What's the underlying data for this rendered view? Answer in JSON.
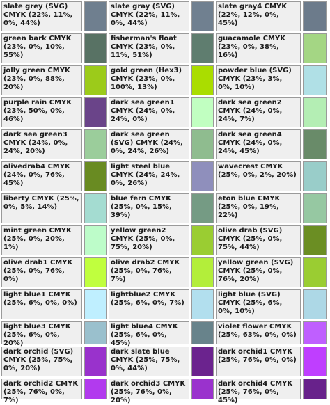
{
  "rows": [
    [
      {
        "label": "slate grey (SVG) CMYK (22%, 11%, 0%, 44%)",
        "color": "#6f7f8f"
      },
      {
        "label": "slate gray (SVG) CMYK (22%, 11%, 0%, 44%)",
        "color": "#708090"
      },
      {
        "label": "slate gray4 CMYK (22%, 12%, 0%, 45%)",
        "color": "#6c7b8b"
      }
    ],
    [
      {
        "label": "green bark CMYK (23%, 0%, 10%, 55%)",
        "color": "#587264"
      },
      {
        "label": "fisherman's float CMYK (23%, 0%, 11%, 51%)",
        "color": "#5f7d6f"
      },
      {
        "label": "guacamole CMYK (23%, 0%, 38%, 16%)",
        "color": "#a4d684"
      }
    ],
    [
      {
        "label": "jolly green CMYK (23%, 0%, 88%, 20%)",
        "color": "#9ccb1a"
      },
      {
        "label": "gold green (Hex3) CMYK (23%, 0%, 100%, 13%)",
        "color": "#aadd00"
      },
      {
        "label": "powder blue (SVG) CMYK (23%, 3%, 0%, 10%)",
        "color": "#b0e0e6"
      }
    ],
    [
      {
        "label": "purple rain CMYK (23%, 50%, 0%, 46%)",
        "color": "#6a4489"
      },
      {
        "label": "dark sea green1 CMYK (24%, 0%, 24%, 0%)",
        "color": "#c1ffc1"
      },
      {
        "label": "dark sea green2 CMYK (24%, 0%, 24%, 7%)",
        "color": "#b4eeb4"
      }
    ],
    [
      {
        "label": "dark sea green3 CMYK (24%, 0%, 24%, 20%)",
        "color": "#9bcd9b"
      },
      {
        "label": "dark sea green (SVG) CMYK (24%, 0%, 24%, 26%)",
        "color": "#8fbc8f"
      },
      {
        "label": "dark sea green4 CMYK (24%, 0%, 24%, 45%)",
        "color": "#698b69"
      }
    ],
    [
      {
        "label": "olivedrab4 CMYK (24%, 0%, 76%, 45%)",
        "color": "#698b22"
      },
      {
        "label": "light steel blue CMYK (24%, 24%, 0%, 26%)",
        "color": "#8f8fbc"
      },
      {
        "label": "wavecrest CMYK (25%, 0%, 2%, 20%)",
        "color": "#99cdc9"
      }
    ],
    [
      {
        "label": "liberty CMYK (25%, 0%, 5%, 14%)",
        "color": "#a4dcd1"
      },
      {
        "label": "blue fern CMYK (25%, 0%, 15%, 39%)",
        "color": "#759b84"
      },
      {
        "label": "eton blue CMYK (25%, 0%, 19%, 22%)",
        "color": "#96c8a2"
      }
    ],
    [
      {
        "label": "mint green CMYK (25%, 0%, 20%, 1%)",
        "color": "#bdfcc9"
      },
      {
        "label": "yellow green2 CMYK (25%, 0%, 75%, 20%)",
        "color": "#9acd32"
      },
      {
        "label": "olive drab (SVG) CMYK (25%, 0%, 75%, 44%)",
        "color": "#6b8e23"
      }
    ],
    [
      {
        "label": "olive drab1 CMYK (25%, 0%, 76%, 0%)",
        "color": "#c0ff3e"
      },
      {
        "label": "olive drab2 CMYK (25%, 0%, 76%, 7%)",
        "color": "#b3ee3a"
      },
      {
        "label": "yellow green (SVG) CMYK (25%, 0%, 76%, 20%)",
        "color": "#9acd32"
      }
    ],
    [
      {
        "label": "light blue1 CMYK (25%, 6%, 0%, 0%)",
        "color": "#bfefff"
      },
      {
        "label": "lightblue2 CMYK (25%, 6%, 0%, 7%)",
        "color": "#b2dfee"
      },
      {
        "label": "light blue (SVG) CMYK (25%, 6%, 0%, 10%)",
        "color": "#add8e6"
      }
    ],
    [
      {
        "label": "light blue3 CMYK (25%, 6%, 0%, 20%)",
        "color": "#9ac0cd"
      },
      {
        "label": "light blue4 CMYK (25%, 6%, 0%, 45%)",
        "color": "#68838b"
      },
      {
        "label": "violet flower CMYK (25%, 63%, 0%, 0%)",
        "color": "#bf5fff"
      }
    ],
    [
      {
        "label": "dark orchid (SVG) CMYK (25%, 75%, 0%, 20%)",
        "color": "#9932cc"
      },
      {
        "label": "dark slate blue CMYK (25%, 75%, 0%, 44%)",
        "color": "#6b238e"
      },
      {
        "label": "dark orchid1 CMYK (25%, 76%, 0%, 0%)",
        "color": "#bf3eff"
      }
    ],
    [
      {
        "label": "dark orchid2 CMYK (25%, 76%, 0%, 7%)",
        "color": "#b23aee"
      },
      {
        "label": "dark orchid3 CMYK (25%, 76%, 0%, 20%)",
        "color": "#9a32cd"
      },
      {
        "label": "dark orchid4 CMYK (25%, 76%, 0%, 45%)",
        "color": "#68228b"
      }
    ]
  ]
}
